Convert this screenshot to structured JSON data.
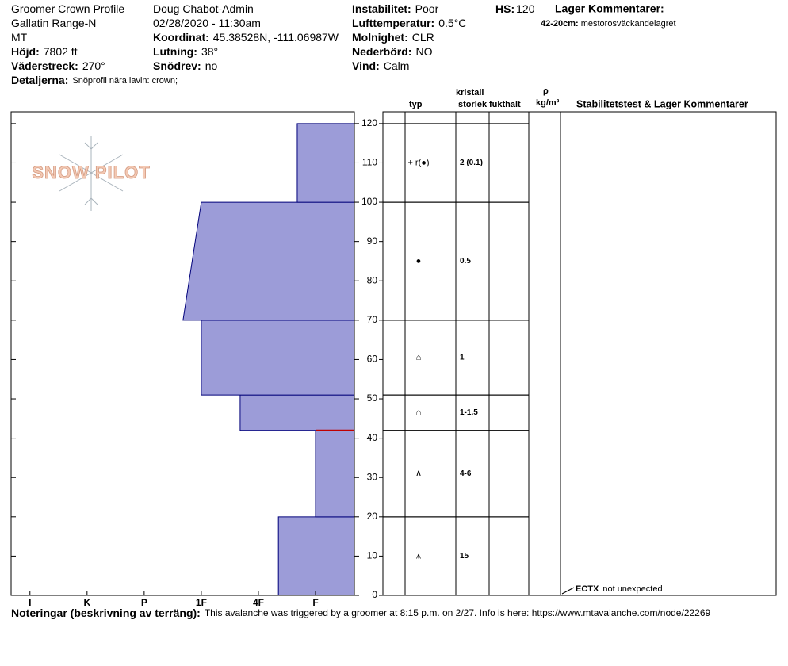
{
  "header": {
    "left": [
      {
        "value": "Groomer Crown Profile"
      },
      {
        "value": "Gallatin Range-N"
      },
      {
        "value": "MT"
      },
      {
        "label": "Höjd:",
        "value": "7802 ft"
      },
      {
        "label": "Väderstreck:",
        "value": "270°"
      }
    ],
    "middle": [
      {
        "value": "Doug Chabot-Admin"
      },
      {
        "value": "02/28/2020 - 11:30am"
      },
      {
        "label": "Koordinat:",
        "value": "45.38528N, -111.06987W"
      },
      {
        "label": "Lutning:",
        "value": "38°"
      },
      {
        "label": "Snödrev:",
        "value": "no"
      }
    ],
    "right": [
      {
        "label": "Instabilitet:",
        "value": "Poor"
      },
      {
        "label": "Lufttemperatur:",
        "value": "0.5°C"
      },
      {
        "label": "Molnighet:",
        "value": "CLR"
      },
      {
        "label": "Nederbörd:",
        "value": "NO"
      },
      {
        "label": "Vind:",
        "value": "Calm"
      }
    ],
    "hs": {
      "label": "HS:",
      "value": 120
    },
    "details": {
      "label": "Detaljerna:",
      "value": "Snöprofil nära lavin: crown;"
    },
    "layer_comments": {
      "title": "Lager Kommentarer:",
      "items": [
        {
          "label": "42-20cm:",
          "value": "mestorosväckandelagret"
        }
      ]
    }
  },
  "logo": "SNOW PILOT",
  "chart_data": {
    "type": "hardness-profile",
    "ylim": [
      0,
      123
    ],
    "yticks": [
      0,
      10,
      20,
      30,
      40,
      50,
      60,
      70,
      80,
      90,
      100,
      110,
      120
    ],
    "xlim": [
      6.33,
      0.32
    ],
    "xticks": [
      {
        "value": 6,
        "label": "I"
      },
      {
        "value": 5,
        "label": "K"
      },
      {
        "value": 4,
        "label": "P"
      },
      {
        "value": 3,
        "label": "1F"
      },
      {
        "value": 2,
        "label": "4F"
      },
      {
        "value": 1,
        "label": "F"
      }
    ],
    "color": "#9c9cd8",
    "edge_color": "#00007a",
    "layers": [
      {
        "bottom": 0,
        "top": 20,
        "hardness_bottom": 1.65,
        "hardness_top": 1.65,
        "grain_type": "⩚",
        "grain_size": "15"
      },
      {
        "bottom": 20,
        "top": 42,
        "hardness_bottom": 1,
        "hardness_top": 1,
        "grain_type": "∧",
        "grain_size": "4-6"
      },
      {
        "bottom": 42,
        "top": 51,
        "hardness_bottom": 2.32,
        "hardness_top": 2.32,
        "grain_type": "⌂",
        "grain_size": "1-1.5"
      },
      {
        "bottom": 51,
        "top": 70,
        "hardness_bottom": 3,
        "hardness_top": 3,
        "grain_type": "⌂",
        "grain_size": "1"
      },
      {
        "bottom": 70,
        "top": 100,
        "hardness_bottom": 3.32,
        "hardness_top": 3,
        "grain_type": "●",
        "grain_size": "0.5"
      },
      {
        "bottom": 100,
        "top": 120,
        "hardness_bottom": 1.32,
        "hardness_top": 1.32,
        "grain_type": "+ r(●)",
        "grain_size": "2 (0.1)"
      }
    ],
    "critical_layer": {
      "height": 42,
      "color": "#c00000"
    }
  },
  "table": {
    "crystal": "kristall",
    "type": "typ",
    "size": "storlek",
    "moisture": "fukthalt",
    "rho": "ρ",
    "density_unit": "kg/m³",
    "tests": "Stabilitetstest & Lager Kommentarer"
  },
  "stability_test": {
    "label": "ECTX",
    "value": "not unexpected"
  },
  "notes": {
    "label": "Noteringar (beskrivning av terräng):",
    "value": "This avalanche was triggered by a groomer at 8:15 p.m. on 2/27. Info is here: https://www.mtavalanche.com/node/22269"
  }
}
